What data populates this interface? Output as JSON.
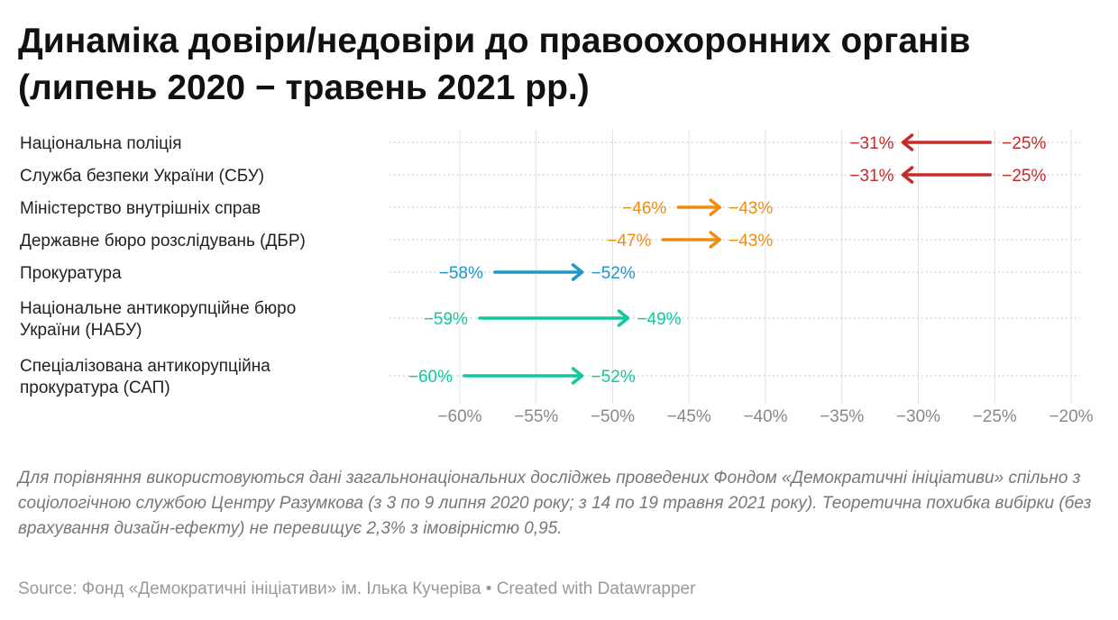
{
  "title_lines": [
    "Динаміка довіри/недовіри до правоохоронних органів",
    "(липень 2020 − травень 2021 рр.)"
  ],
  "note": "Для порівняння використовуються дані загальнонаціональних досліджеь проведених Фондом «Демократичні ініціативи» спільно з соціологічною службою Центру Разумкова (з 3 по 9 липня 2020 року; з 14 по 19 травня 2021 року). Теоретична похибка вибірки (без врахування дизайн-ефекту) не перевищує 2,3% з імовірністю 0,95.",
  "source": "Source: Фонд «Демократичні ініціативи» ім. Ілька Кучеріва • Created with Datawrapper",
  "chart_data": {
    "type": "arrow",
    "xlim": [
      -60,
      -20
    ],
    "x_ticks": [
      -60,
      -55,
      -50,
      -45,
      -40,
      -35,
      -30,
      -25,
      -20
    ],
    "x_tick_labels": [
      "−60%",
      "−55%",
      "−50%",
      "−45%",
      "−40%",
      "−35%",
      "−30%",
      "−25%",
      "−20%"
    ],
    "grid": "vertical",
    "rows": [
      {
        "label": [
          "Національна поліція"
        ],
        "start": -25,
        "end": -31,
        "start_label": "−25%",
        "end_label": "−31%",
        "color": "#c52b2b"
      },
      {
        "label": [
          "Служба безпеки України (СБУ)"
        ],
        "start": -25,
        "end": -31,
        "start_label": "−25%",
        "end_label": "−31%",
        "color": "#c52b2b"
      },
      {
        "label": [
          "Міністерство внутрішніх справ"
        ],
        "start": -46,
        "end": -43,
        "start_label": "−46%",
        "end_label": "−43%",
        "color": "#f18c0e"
      },
      {
        "label": [
          "Державне бюро розслідувань (ДБР)"
        ],
        "start": -47,
        "end": -43,
        "start_label": "−47%",
        "end_label": "−43%",
        "color": "#f18c0e"
      },
      {
        "label": [
          "Прокуратура"
        ],
        "start": -58,
        "end": -52,
        "start_label": "−58%",
        "end_label": "−52%",
        "color": "#2097c8"
      },
      {
        "label": [
          "Національне антикорупційне бюро",
          "України (НАБУ)"
        ],
        "start": -59,
        "end": -49,
        "start_label": "−59%",
        "end_label": "−49%",
        "color": "#10c99c"
      },
      {
        "label": [
          "Спеціалізована антикорупційна",
          "прокуратура (САП)"
        ],
        "start": -60,
        "end": -52,
        "start_label": "−60%",
        "end_label": "−52%",
        "color": "#10c99c"
      }
    ]
  }
}
